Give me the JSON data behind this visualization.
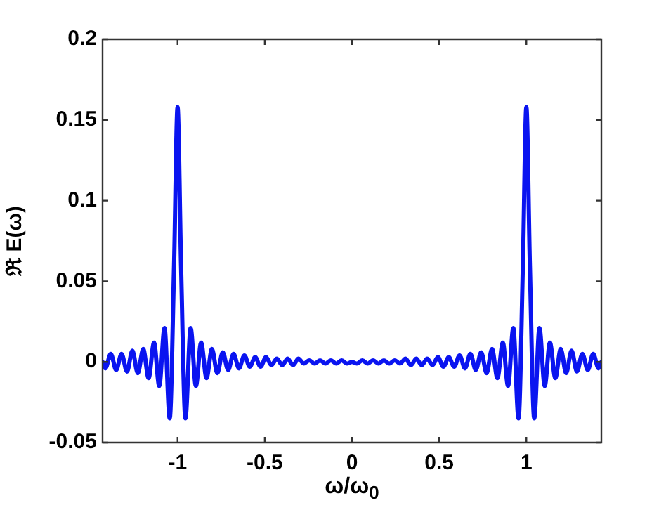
{
  "chart_data": {
    "type": "line",
    "xlabel": "ω/ω$_{0}$",
    "ylabel": "ℜ E(ω)",
    "x": [
      -1.43,
      -1.414,
      -1.383,
      -1.352,
      -1.321,
      -1.29,
      -1.259,
      -1.228,
      -1.197,
      -1.166,
      -1.135,
      -1.105,
      -1.075,
      -1.045,
      -1.02,
      -1,
      -0.98,
      -0.955,
      -0.925,
      -0.895,
      -0.865,
      -0.834,
      -0.803,
      -0.772,
      -0.741,
      -0.71,
      -0.679,
      -0.648,
      -0.617,
      -0.586,
      -0.555,
      -0.524,
      -0.493,
      -0.462,
      -0.431,
      -0.4,
      -0.369,
      -0.338,
      -0.307,
      -0.276,
      -0.245,
      -0.214,
      -0.183,
      -0.152,
      -0.121,
      -0.09,
      -0.059,
      -0.028,
      0,
      0.028,
      0.059,
      0.09,
      0.121,
      0.152,
      0.183,
      0.214,
      0.245,
      0.276,
      0.307,
      0.338,
      0.369,
      0.4,
      0.431,
      0.462,
      0.493,
      0.524,
      0.555,
      0.586,
      0.617,
      0.648,
      0.679,
      0.71,
      0.741,
      0.772,
      0.803,
      0.834,
      0.865,
      0.895,
      0.925,
      0.955,
      0.98,
      1,
      1.02,
      1.045,
      1.075,
      1.105,
      1.135,
      1.166,
      1.197,
      1.228,
      1.259,
      1.29,
      1.321,
      1.352,
      1.383,
      1.414,
      1.43
    ],
    "series": [
      {
        "color": "#0a14f0",
        "values": [
          0,
          -0.004,
          0.005,
          -0.005,
          0.005,
          -0.006,
          0.007,
          -0.007,
          0.008,
          -0.01,
          0.012,
          -0.015,
          0.021,
          -0.035,
          0.06,
          0.158,
          0.06,
          -0.035,
          0.021,
          -0.015,
          0.012,
          -0.01,
          0.008,
          -0.007,
          0.006,
          -0.005,
          0.005,
          -0.004,
          0.004,
          -0.003,
          0.003,
          -0.003,
          0.003,
          -0.002,
          0.002,
          -0.002,
          0.002,
          -0.002,
          0.002,
          -0.001,
          0.001,
          -0.001,
          0.001,
          -0.001,
          0.001,
          -0.001,
          0.001,
          -0.001,
          0,
          -0.001,
          0.001,
          -0.001,
          0.001,
          -0.001,
          0.001,
          -0.001,
          0.001,
          -0.001,
          0.002,
          -0.002,
          0.002,
          -0.002,
          0.002,
          -0.002,
          0.003,
          -0.003,
          0.003,
          -0.003,
          0.004,
          -0.004,
          0.005,
          -0.005,
          0.006,
          -0.007,
          0.008,
          -0.01,
          0.012,
          -0.015,
          0.021,
          -0.035,
          0.06,
          0.158,
          0.06,
          -0.035,
          0.021,
          -0.015,
          0.012,
          -0.01,
          0.008,
          -0.007,
          0.007,
          -0.006,
          0.005,
          -0.005,
          0.005,
          -0.004,
          0
        ]
      }
    ],
    "xlim": [
      -1.43,
      1.43
    ],
    "xticks": [
      -1,
      -0.5,
      0,
      0.5,
      1
    ],
    "ylim": [
      -0.05,
      0.2
    ],
    "yticks": [
      -0.05,
      0,
      0.05,
      0.1,
      0.15,
      0.2
    ],
    "grid": false,
    "legend": false,
    "marker": "none",
    "line_style": "solid"
  }
}
